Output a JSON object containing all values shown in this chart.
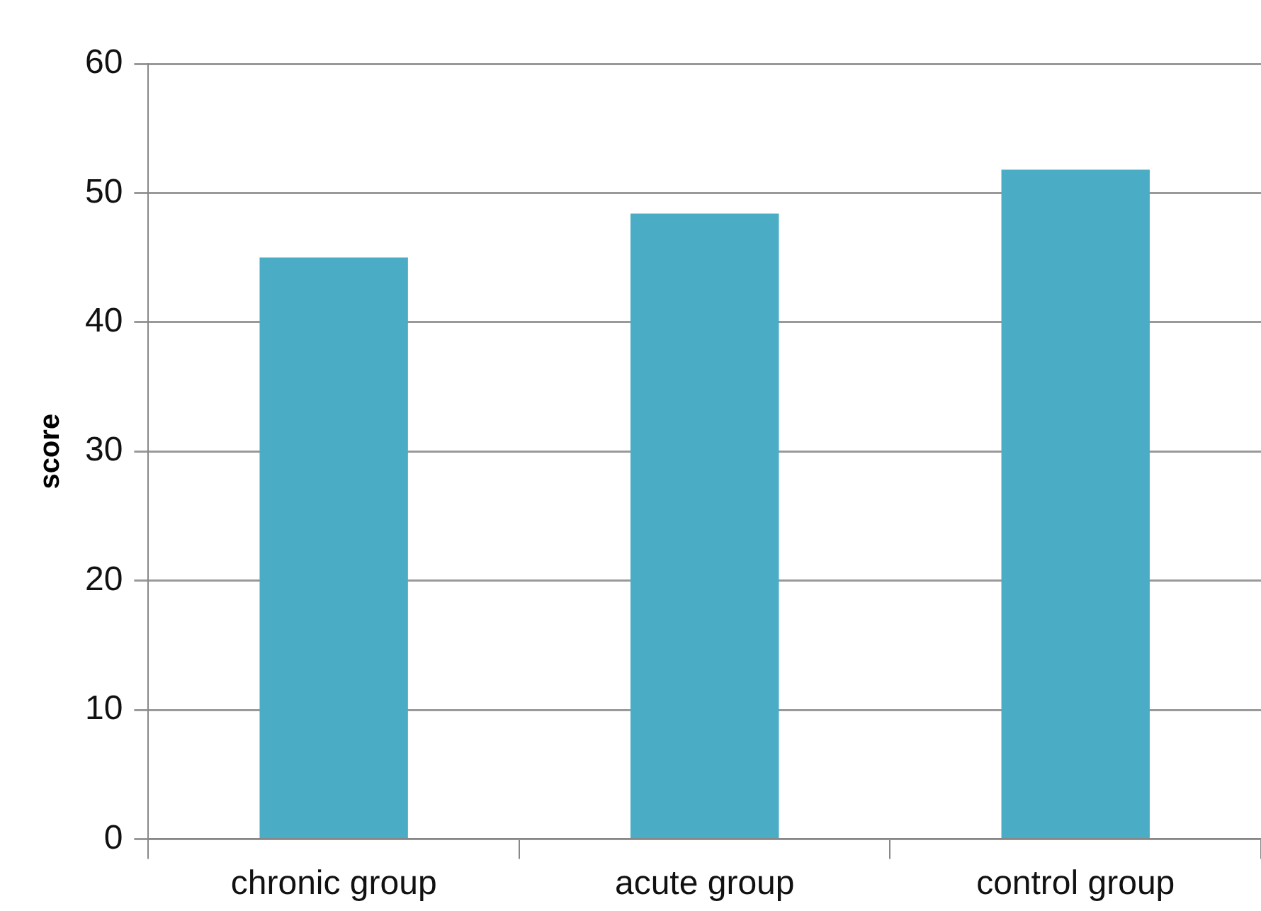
{
  "chart_data": {
    "type": "bar",
    "ylabel": "score",
    "categories": [
      "chronic group",
      "acute group",
      "control group"
    ],
    "values": [
      45,
      48.4,
      51.8
    ],
    "color": "#4bacc6",
    "ylim": [
      0,
      60
    ],
    "yticks": [
      0,
      10,
      20,
      30,
      40,
      50,
      60
    ],
    "grid": "y",
    "legend": false
  }
}
